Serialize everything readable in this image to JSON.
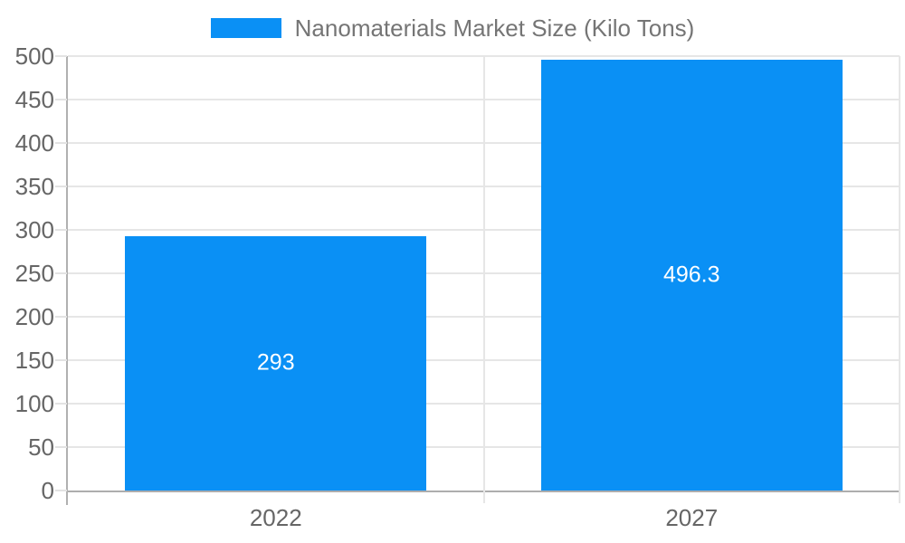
{
  "legend": {
    "label": "Nanomaterials Market Size (Kilo Tons)"
  },
  "chart_data": {
    "type": "bar",
    "categories": [
      "2022",
      "2027"
    ],
    "values": [
      293,
      496.3
    ],
    "value_labels": [
      "293",
      "496.3"
    ],
    "title": "Nanomaterials Market Size (Kilo Tons)",
    "xlabel": "",
    "ylabel": "",
    "ylim": [
      0,
      500
    ],
    "yticks": [
      0,
      50,
      100,
      150,
      200,
      250,
      300,
      350,
      400,
      450,
      500
    ],
    "grid": true,
    "legend_position": "top-center",
    "bar_color": "#0a90f5",
    "annotation_color": "#ffffff"
  },
  "colors": {
    "bar": "#0a90f5",
    "gridline": "#e6e6e6",
    "axis_line": "#b0b0b0",
    "baseline": "#adadad",
    "tick_label": "#666666",
    "legend_text": "#757575",
    "annotation_text": "#ffffff",
    "background": "#ffffff"
  }
}
